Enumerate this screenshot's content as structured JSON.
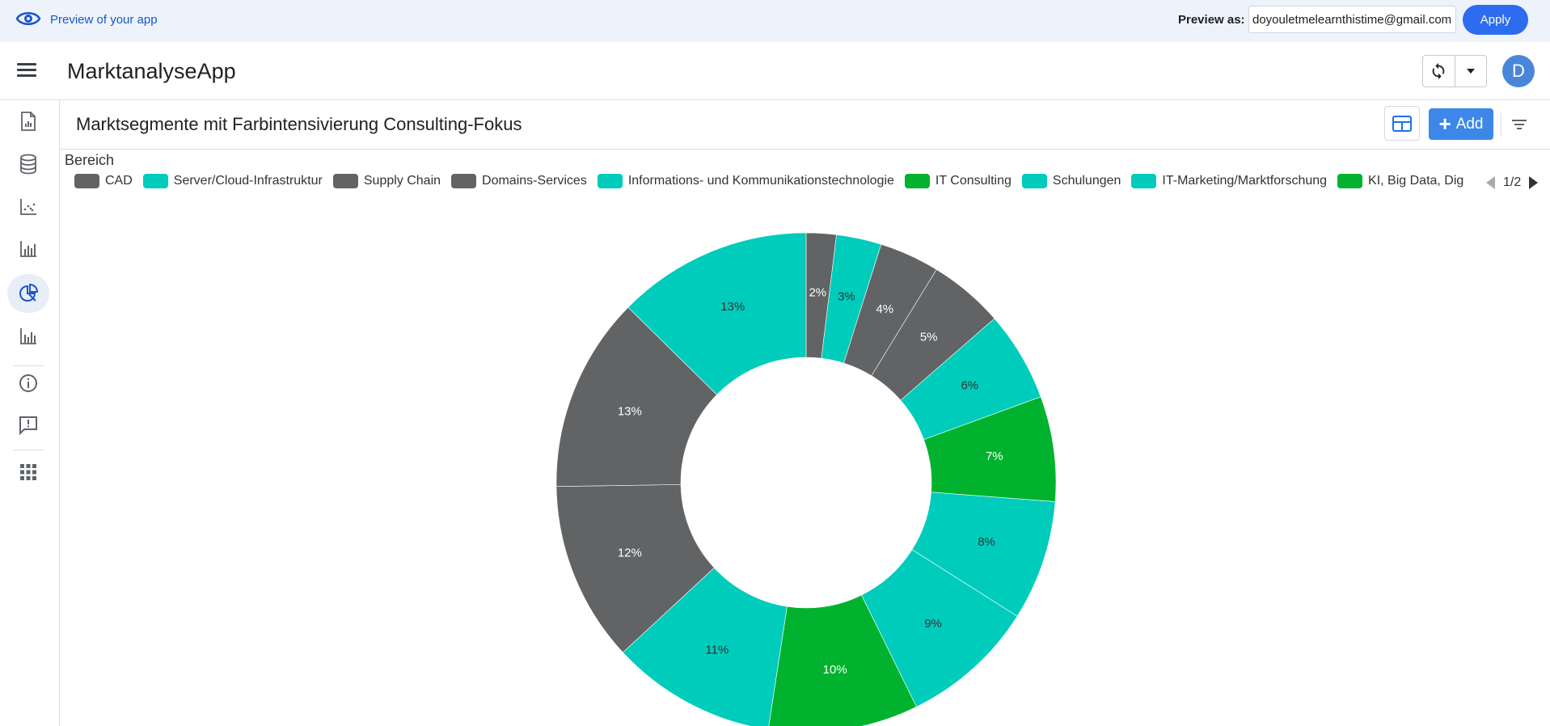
{
  "preview": {
    "label": "Preview of your app",
    "as_label": "Preview as:",
    "email": "doyouletmelearnthistime@gmail.com",
    "apply": "Apply"
  },
  "header": {
    "app_title": "MarktanalyseApp",
    "avatar_letter": "D"
  },
  "sidebar": {
    "items": [
      {
        "icon": "report-icon"
      },
      {
        "icon": "database-icon"
      },
      {
        "icon": "scatter-chart-icon"
      },
      {
        "icon": "bar-chart-icon"
      },
      {
        "icon": "pie-chart-icon",
        "active": true
      },
      {
        "icon": "bar-chart-icon-2"
      },
      {
        "icon": "info-icon"
      },
      {
        "icon": "feedback-icon"
      },
      {
        "icon": "apps-grid-icon"
      }
    ]
  },
  "view": {
    "title": "Marktsegmente mit Farbintensivierung Consulting-Fokus",
    "add_label": "Add"
  },
  "legend": {
    "title": "Bereich",
    "page": "1/2",
    "items": [
      {
        "label": "CAD",
        "color": "#616365"
      },
      {
        "label": "Server/Cloud-Infrastruktur",
        "color": "#00ccbc"
      },
      {
        "label": "Supply Chain",
        "color": "#616365"
      },
      {
        "label": "Domains-Services",
        "color": "#616365"
      },
      {
        "label": "Informations- und Kommunikationstechnologie",
        "color": "#00ccbc"
      },
      {
        "label": "IT Consulting",
        "color": "#00b22d"
      },
      {
        "label": "Schulungen",
        "color": "#00ccbc"
      },
      {
        "label": "IT-Marketing/Marktforschung",
        "color": "#00ccbc"
      },
      {
        "label": "KI, Big Data, Dig",
        "color": "#00b22d"
      }
    ]
  },
  "chart_data": {
    "type": "pie",
    "legend_title": "Bereich",
    "legend_placement": "top",
    "slices": [
      {
        "label": "2%",
        "value": 2,
        "color": "#616365",
        "label_color": "#ffffff"
      },
      {
        "label": "3%",
        "value": 3,
        "color": "#00ccbc",
        "label_color": "#333333"
      },
      {
        "label": "4%",
        "value": 4,
        "color": "#616365",
        "label_color": "#ffffff"
      },
      {
        "label": "5%",
        "value": 5,
        "color": "#616365",
        "label_color": "#ffffff"
      },
      {
        "label": "6%",
        "value": 6,
        "color": "#00ccbc",
        "label_color": "#333333"
      },
      {
        "label": "7%",
        "value": 7,
        "color": "#00b22d",
        "label_color": "#ffffff"
      },
      {
        "label": "8%",
        "value": 8,
        "color": "#00ccbc",
        "label_color": "#333333"
      },
      {
        "label": "9%",
        "value": 9,
        "color": "#00ccbc",
        "label_color": "#333333"
      },
      {
        "label": "10%",
        "value": 10,
        "color": "#00b22d",
        "label_color": "#ffffff"
      },
      {
        "label": "11%",
        "value": 11,
        "color": "#00ccbc",
        "label_color": "#333333"
      },
      {
        "label": "12%",
        "value": 12,
        "color": "#616365",
        "label_color": "#ffffff"
      },
      {
        "label": "13%",
        "value": 13,
        "color": "#616365",
        "label_color": "#ffffff"
      },
      {
        "label": "13%",
        "value": 13,
        "color": "#00ccbc",
        "label_color": "#333333"
      }
    ]
  }
}
